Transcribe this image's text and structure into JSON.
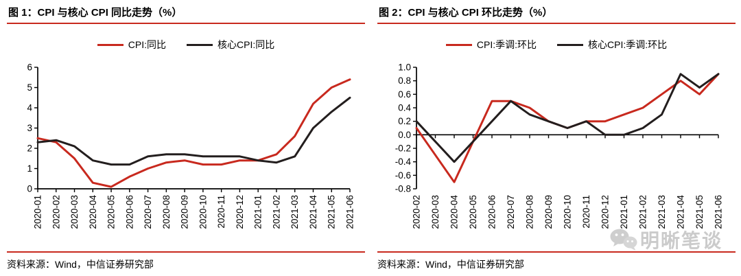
{
  "colors": {
    "accent_red": "#c8291e",
    "line_black": "#231e1e",
    "watermark_gray": "#c6c6c6"
  },
  "source_note": "资料来源：Wind，中信证券研究部",
  "watermark": {
    "text": "明晰笔谈",
    "icon": "wechat-icon"
  },
  "chart_data": [
    {
      "type": "line",
      "title": "图 1：CPI 与核心 CPI 同比走势（%）",
      "categories": [
        "2020-01",
        "2020-02",
        "2020-03",
        "2020-04",
        "2020-05",
        "2020-06",
        "2020-07",
        "2020-08",
        "2020-09",
        "2020-10",
        "2020-11",
        "2020-12",
        "2021-01",
        "2021-02",
        "2021-03",
        "2021-04",
        "2021-05",
        "2021-06"
      ],
      "series": [
        {
          "name": "CPI:同比",
          "color": "#c8291e",
          "values": [
            2.5,
            2.3,
            1.5,
            0.3,
            0.1,
            0.6,
            1.0,
            1.3,
            1.4,
            1.2,
            1.2,
            1.4,
            1.4,
            1.7,
            2.6,
            4.2,
            5.0,
            5.4
          ]
        },
        {
          "name": "核心CPI:同比",
          "color": "#231e1e",
          "values": [
            2.3,
            2.4,
            2.1,
            1.4,
            1.2,
            1.2,
            1.6,
            1.7,
            1.7,
            1.6,
            1.6,
            1.6,
            1.4,
            1.3,
            1.6,
            3.0,
            3.8,
            4.5
          ]
        }
      ],
      "ylim": [
        0,
        6
      ],
      "ytick_step": 1,
      "ytick_decimals": 0,
      "x_axis_at": 0,
      "grid": false,
      "legend_position": "top"
    },
    {
      "type": "line",
      "title": "图 2：CPI 与核心 CPI 环比走势（%）",
      "categories": [
        "2020-02",
        "2020-03",
        "2020-04",
        "2020-05",
        "2020-06",
        "2020-07",
        "2020-08",
        "2020-09",
        "2020-10",
        "2020-11",
        "2020-12",
        "2021-01",
        "2021-02",
        "2021-03",
        "2021-04",
        "2021-05",
        "2021-06"
      ],
      "series": [
        {
          "name": "CPI:季调:环比",
          "color": "#c8291e",
          "values": [
            0.1,
            -0.3,
            -0.7,
            -0.1,
            0.5,
            0.5,
            0.4,
            0.2,
            0.1,
            0.2,
            0.2,
            0.3,
            0.4,
            0.6,
            0.8,
            0.6,
            0.9
          ]
        },
        {
          "name": "核心CPI:季调:环比",
          "color": "#231e1e",
          "values": [
            0.2,
            -0.1,
            -0.4,
            -0.1,
            0.2,
            0.5,
            0.3,
            0.2,
            0.1,
            0.2,
            0.0,
            0.0,
            0.1,
            0.3,
            0.9,
            0.7,
            0.9
          ]
        }
      ],
      "ylim": [
        -0.8,
        1.0
      ],
      "ytick_step": 0.2,
      "ytick_decimals": 1,
      "x_axis_at": 0,
      "grid": false,
      "legend_position": "top"
    }
  ]
}
